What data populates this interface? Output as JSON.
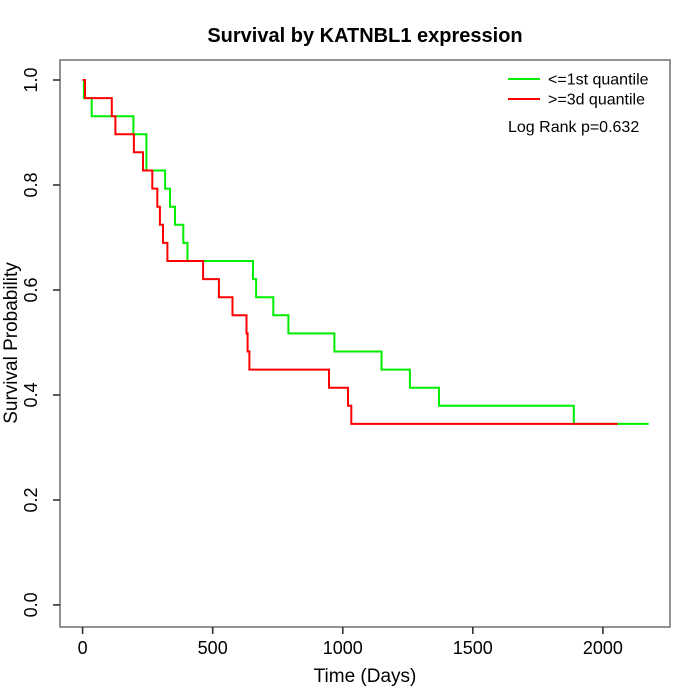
{
  "title": "Survival by KATNBL1 expression",
  "legend": {
    "items": [
      {
        "label": "<=1st quantile",
        "color": "#00EE00"
      },
      {
        "label": ">=3d quantile",
        "color": "#FF0000"
      }
    ],
    "note": "Log Rank p=0.632"
  },
  "chart_data": {
    "type": "line",
    "variant": "kaplan-meier-step",
    "title": "Survival by KATNBL1 expression",
    "xlabel": "Time (Days)",
    "ylabel": "Survival Probability",
    "xlim": [
      -87,
      2258
    ],
    "ylim": [
      -0.042,
      1.038
    ],
    "x_ticks": {
      "values": [
        0,
        500,
        1000,
        1500,
        2000
      ],
      "labels": [
        "0",
        "500",
        "1000",
        "1500",
        "2000"
      ]
    },
    "y_ticks": {
      "values": [
        0,
        0.2,
        0.4,
        0.6,
        0.8,
        1.0
      ],
      "labels": [
        "0.0",
        "0.2",
        "0.4",
        "0.6",
        "0.8",
        "1.0"
      ]
    },
    "grid": false,
    "legend_position": "top-right",
    "annotation": "Log Rank p=0.632",
    "axis_color": "#777777",
    "tick_color": "#333333",
    "series": [
      {
        "name": "<=1st quantile",
        "color": "#00EE00",
        "step_points": [
          [
            0,
            1.0
          ],
          [
            5,
            0.9655
          ],
          [
            35,
            0.931
          ],
          [
            195,
            0.8966
          ],
          [
            245,
            0.8276
          ],
          [
            317,
            0.7931
          ],
          [
            336,
            0.7586
          ],
          [
            355,
            0.7241
          ],
          [
            387,
            0.6897
          ],
          [
            403,
            0.6552
          ],
          [
            655,
            0.6207
          ],
          [
            667,
            0.5862
          ],
          [
            733,
            0.5517
          ],
          [
            791,
            0.5172
          ],
          [
            968,
            0.4828
          ],
          [
            1149,
            0.4483
          ],
          [
            1258,
            0.4138
          ],
          [
            1370,
            0.3793
          ],
          [
            1888,
            0.3448
          ],
          [
            2176,
            0.3448
          ]
        ]
      },
      {
        "name": ">=3d quantile",
        "color": "#FF0000",
        "step_points": [
          [
            0,
            1.0
          ],
          [
            9,
            0.9655
          ],
          [
            112,
            0.931
          ],
          [
            126,
            0.8966
          ],
          [
            197,
            0.8621
          ],
          [
            232,
            0.8276
          ],
          [
            268,
            0.7931
          ],
          [
            287,
            0.7586
          ],
          [
            297,
            0.7241
          ],
          [
            309,
            0.6897
          ],
          [
            326,
            0.6552
          ],
          [
            463,
            0.6207
          ],
          [
            524,
            0.5862
          ],
          [
            576,
            0.5517
          ],
          [
            630,
            0.5172
          ],
          [
            634,
            0.4828
          ],
          [
            641,
            0.4483
          ],
          [
            947,
            0.4138
          ],
          [
            1020,
            0.3793
          ],
          [
            1033,
            0.3448
          ],
          [
            2056,
            0.3448
          ]
        ]
      }
    ]
  }
}
